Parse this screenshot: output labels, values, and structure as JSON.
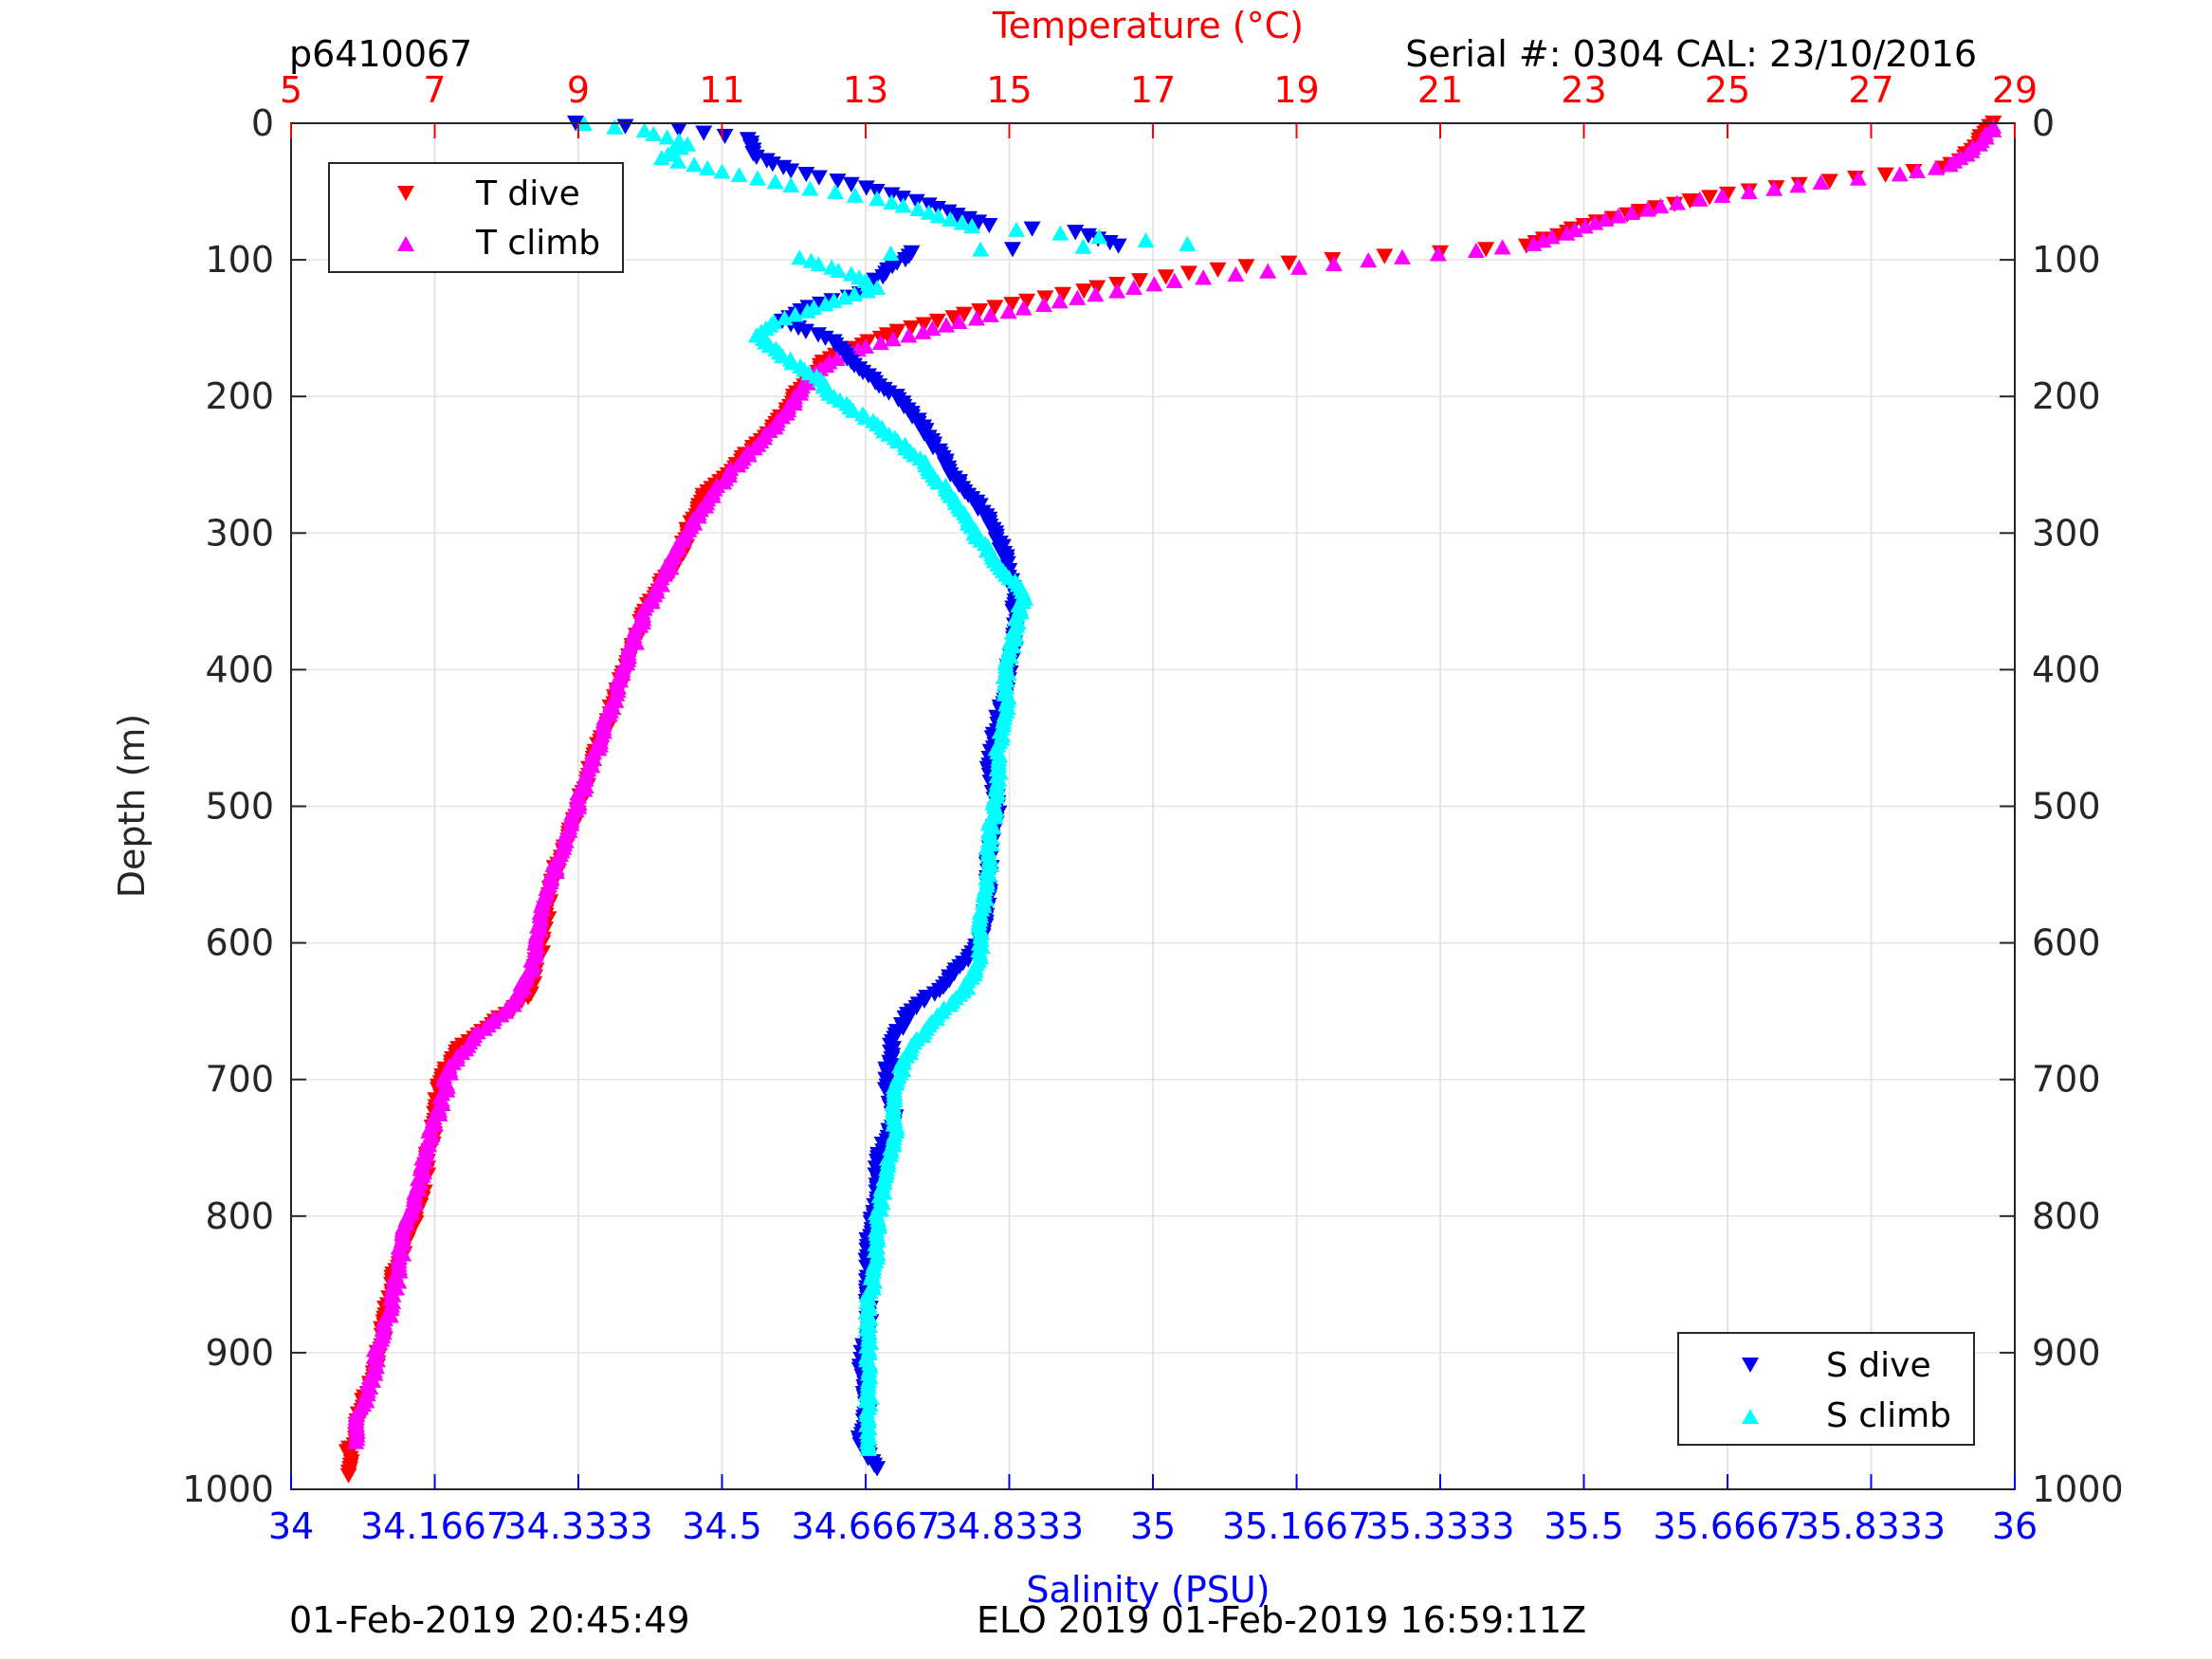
{
  "header": {
    "id_label": "p6410067",
    "serial_label": "Serial #: 0304  CAL: 23/10/2016"
  },
  "footer": {
    "left_timestamp": "01-Feb-2019 20:45:49",
    "mission_label": "ELO 2019 01-Feb-2019 16:59:11Z"
  },
  "colors": {
    "temp_axis": "#ff0000",
    "sal_axis": "#0000ff",
    "t_dive": "#ff0000",
    "t_climb": "#ff00ff",
    "s_dive": "#0000ee",
    "s_climb": "#00ffff"
  },
  "chart_data": {
    "type": "scatter",
    "y_axis": {
      "label": "Depth (m)",
      "lim": [
        0,
        1000
      ],
      "reversed": true,
      "ticks": [
        0,
        100,
        200,
        300,
        400,
        500,
        600,
        700,
        800,
        900,
        1000
      ],
      "tick_labels": [
        "0",
        "100",
        "200",
        "300",
        "400",
        "500",
        "600",
        "700",
        "800",
        "900",
        "1000"
      ]
    },
    "temperature_axis": {
      "label": "Temperature (°C)",
      "position": "top",
      "lim": [
        5,
        29
      ],
      "ticks": [
        5,
        7,
        9,
        11,
        13,
        15,
        17,
        19,
        21,
        23,
        25,
        27,
        29
      ],
      "tick_labels": [
        "5",
        "7",
        "9",
        "11",
        "13",
        "15",
        "17",
        "19",
        "21",
        "23",
        "25",
        "27",
        "29"
      ]
    },
    "salinity_axis": {
      "label": "Salinity (PSU)",
      "position": "bottom",
      "lim": [
        34,
        36
      ],
      "ticks": [
        34,
        34.1667,
        34.3333,
        34.5,
        34.6667,
        34.8333,
        35,
        35.1667,
        35.3333,
        35.5,
        35.6667,
        35.8333,
        36
      ],
      "tick_labels": [
        "34",
        "34.1667",
        "34.3333",
        "34.5",
        "34.6667",
        "34.8333",
        "35",
        "35.1667",
        "35.3333",
        "35.5",
        "35.6667",
        "35.8333",
        "36"
      ]
    },
    "grid": true,
    "legends": [
      {
        "placement": "top-left",
        "entries": [
          "T dive",
          "T climb"
        ]
      },
      {
        "placement": "bottom-right",
        "entries": [
          "S dive",
          "S climb"
        ]
      }
    ],
    "series": [
      {
        "name": "T dive",
        "axis": "temperature",
        "marker": "triangle-down",
        "points": [
          [
            28.7,
            0
          ],
          [
            28.6,
            5
          ],
          [
            28.5,
            15
          ],
          [
            28.3,
            25
          ],
          [
            28.0,
            33
          ],
          [
            27.2,
            38
          ],
          [
            26.0,
            45
          ],
          [
            25.0,
            52
          ],
          [
            24.0,
            62
          ],
          [
            23.0,
            75
          ],
          [
            22.2,
            90
          ],
          [
            21.0,
            95
          ],
          [
            19.5,
            100
          ],
          [
            18.3,
            105
          ],
          [
            17.5,
            110
          ],
          [
            16.5,
            118
          ],
          [
            15.5,
            128
          ],
          [
            14.8,
            135
          ],
          [
            14.0,
            145
          ],
          [
            13.3,
            155
          ],
          [
            12.8,
            165
          ],
          [
            12.4,
            175
          ],
          [
            12.3,
            185
          ],
          [
            12.1,
            195
          ],
          [
            11.9,
            210
          ],
          [
            11.6,
            230
          ],
          [
            11.2,
            250
          ],
          [
            10.8,
            270
          ],
          [
            10.6,
            290
          ],
          [
            10.4,
            320
          ],
          [
            10.0,
            350
          ],
          [
            9.8,
            380
          ],
          [
            9.6,
            410
          ],
          [
            9.4,
            440
          ],
          [
            9.2,
            470
          ],
          [
            9.0,
            500
          ],
          [
            8.8,
            530
          ],
          [
            8.6,
            560
          ],
          [
            8.5,
            600
          ],
          [
            8.3,
            640
          ],
          [
            7.8,
            660
          ],
          [
            7.3,
            680
          ],
          [
            7.1,
            700
          ],
          [
            7.0,
            730
          ],
          [
            6.9,
            760
          ],
          [
            6.8,
            790
          ],
          [
            6.6,
            820
          ],
          [
            6.4,
            850
          ],
          [
            6.3,
            880
          ],
          [
            6.2,
            910
          ],
          [
            6.0,
            940
          ],
          [
            5.9,
            960
          ],
          [
            5.8,
            975
          ],
          [
            5.8,
            990
          ]
        ]
      },
      {
        "name": "T climb",
        "axis": "temperature",
        "marker": "triangle-up",
        "points": [
          [
            28.7,
            2
          ],
          [
            28.6,
            10
          ],
          [
            28.4,
            20
          ],
          [
            28.1,
            30
          ],
          [
            27.4,
            37
          ],
          [
            26.3,
            43
          ],
          [
            25.3,
            50
          ],
          [
            24.3,
            58
          ],
          [
            23.3,
            70
          ],
          [
            22.3,
            88
          ],
          [
            21.5,
            93
          ],
          [
            20.0,
            100
          ],
          [
            18.6,
            108
          ],
          [
            17.3,
            115
          ],
          [
            16.2,
            125
          ],
          [
            15.2,
            135
          ],
          [
            14.3,
            145
          ],
          [
            13.6,
            155
          ],
          [
            13.0,
            163
          ],
          [
            12.6,
            172
          ],
          [
            12.3,
            182
          ],
          [
            12.1,
            195
          ],
          [
            11.9,
            212
          ],
          [
            11.5,
            235
          ],
          [
            11.1,
            255
          ],
          [
            10.8,
            275
          ],
          [
            10.5,
            300
          ],
          [
            10.2,
            330
          ],
          [
            9.9,
            360
          ],
          [
            9.7,
            390
          ],
          [
            9.5,
            420
          ],
          [
            9.3,
            450
          ],
          [
            9.1,
            480
          ],
          [
            8.9,
            510
          ],
          [
            8.7,
            540
          ],
          [
            8.5,
            575
          ],
          [
            8.4,
            610
          ],
          [
            8.1,
            645
          ],
          [
            7.6,
            665
          ],
          [
            7.2,
            690
          ],
          [
            7.1,
            715
          ],
          [
            6.9,
            745
          ],
          [
            6.8,
            775
          ],
          [
            6.6,
            805
          ],
          [
            6.5,
            835
          ],
          [
            6.4,
            865
          ],
          [
            6.2,
            895
          ],
          [
            6.1,
            925
          ],
          [
            5.9,
            950
          ],
          [
            5.9,
            965
          ]
        ]
      },
      {
        "name": "S dive",
        "axis": "salinity",
        "marker": "triangle-down",
        "points": [
          [
            34.33,
            0
          ],
          [
            34.45,
            5
          ],
          [
            34.53,
            12
          ],
          [
            34.54,
            25
          ],
          [
            34.58,
            35
          ],
          [
            34.65,
            45
          ],
          [
            34.74,
            60
          ],
          [
            34.81,
            75
          ],
          [
            34.91,
            80
          ],
          [
            34.96,
            90
          ],
          [
            34.72,
            95
          ],
          [
            34.69,
            110
          ],
          [
            34.66,
            125
          ],
          [
            34.6,
            135
          ],
          [
            34.57,
            145
          ],
          [
            34.63,
            160
          ],
          [
            34.65,
            175
          ],
          [
            34.67,
            185
          ],
          [
            34.71,
            205
          ],
          [
            34.74,
            230
          ],
          [
            34.77,
            260
          ],
          [
            34.81,
            290
          ],
          [
            34.83,
            320
          ],
          [
            34.84,
            350
          ],
          [
            34.84,
            380
          ],
          [
            34.83,
            410
          ],
          [
            34.82,
            440
          ],
          [
            34.81,
            470
          ],
          [
            34.82,
            500
          ],
          [
            34.81,
            530
          ],
          [
            34.81,
            560
          ],
          [
            34.8,
            600
          ],
          [
            34.76,
            630
          ],
          [
            34.72,
            650
          ],
          [
            34.7,
            670
          ],
          [
            34.69,
            700
          ],
          [
            34.7,
            730
          ],
          [
            34.68,
            760
          ],
          [
            34.68,
            790
          ],
          [
            34.67,
            820
          ],
          [
            34.67,
            850
          ],
          [
            34.67,
            880
          ],
          [
            34.66,
            910
          ],
          [
            34.67,
            940
          ],
          [
            34.66,
            965
          ],
          [
            34.68,
            985
          ]
        ]
      },
      {
        "name": "S climb",
        "axis": "salinity",
        "marker": "triangle-up",
        "points": [
          [
            34.34,
            0
          ],
          [
            34.41,
            5
          ],
          [
            34.46,
            15
          ],
          [
            34.43,
            25
          ],
          [
            34.5,
            35
          ],
          [
            34.58,
            45
          ],
          [
            34.68,
            55
          ],
          [
            34.74,
            65
          ],
          [
            34.79,
            75
          ],
          [
            35.04,
            88
          ],
          [
            34.8,
            92
          ],
          [
            34.59,
            98
          ],
          [
            34.65,
            110
          ],
          [
            34.68,
            120
          ],
          [
            34.62,
            132
          ],
          [
            34.56,
            145
          ],
          [
            34.54,
            155
          ],
          [
            34.57,
            170
          ],
          [
            34.61,
            185
          ],
          [
            34.63,
            200
          ],
          [
            34.68,
            220
          ],
          [
            34.73,
            245
          ],
          [
            34.77,
            275
          ],
          [
            34.8,
            305
          ],
          [
            34.85,
            345
          ],
          [
            34.84,
            370
          ],
          [
            34.83,
            400
          ],
          [
            34.83,
            430
          ],
          [
            34.82,
            460
          ],
          [
            34.82,
            490
          ],
          [
            34.81,
            520
          ],
          [
            34.81,
            550
          ],
          [
            34.8,
            580
          ],
          [
            34.8,
            610
          ],
          [
            34.78,
            635
          ],
          [
            34.74,
            660
          ],
          [
            34.71,
            685
          ],
          [
            34.7,
            710
          ],
          [
            34.7,
            740
          ],
          [
            34.69,
            770
          ],
          [
            34.68,
            800
          ],
          [
            34.68,
            830
          ],
          [
            34.67,
            860
          ],
          [
            34.67,
            890
          ],
          [
            34.67,
            920
          ],
          [
            34.67,
            950
          ],
          [
            34.67,
            970
          ]
        ]
      }
    ]
  }
}
